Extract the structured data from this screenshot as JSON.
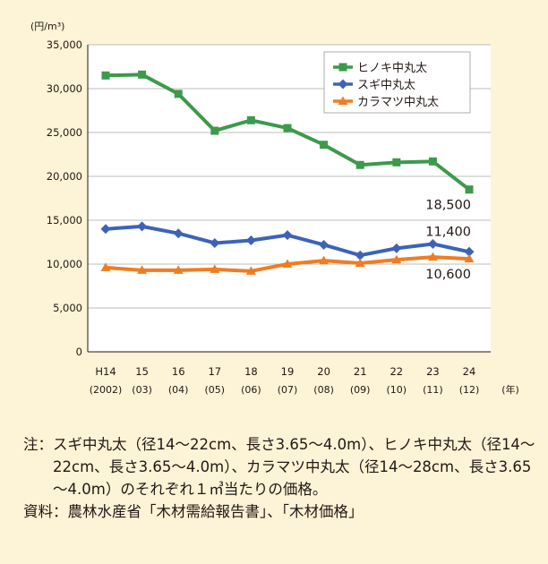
{
  "chart_data": {
    "type": "line",
    "y_unit": "(円/m³)",
    "x_unit": "(年)",
    "categories": [
      "H14",
      "15",
      "16",
      "17",
      "18",
      "19",
      "20",
      "21",
      "22",
      "23",
      "24"
    ],
    "subcategories": [
      "(2002)",
      "(03)",
      "(04)",
      "(05)",
      "(06)",
      "(07)",
      "(08)",
      "(09)",
      "(10)",
      "(11)",
      "(12)"
    ],
    "ylim": [
      0,
      35000
    ],
    "yticks": [
      0,
      5000,
      10000,
      15000,
      20000,
      25000,
      30000,
      35000
    ],
    "ytick_labels": [
      "0",
      "5,000",
      "10,000",
      "15,000",
      "20,000",
      "25,000",
      "30,000",
      "35,000"
    ],
    "grid": true,
    "legend_position": "top-right",
    "series": [
      {
        "name": "ヒノキ中丸太",
        "color": "#3c9a4a",
        "marker": "square",
        "values": [
          31500,
          31600,
          29400,
          25200,
          26400,
          25500,
          23600,
          21300,
          21600,
          21700,
          18500
        ],
        "end_label": "18,500"
      },
      {
        "name": "スギ中丸太",
        "color": "#3d63b8",
        "marker": "diamond",
        "values": [
          14000,
          14300,
          13500,
          12400,
          12700,
          13300,
          12200,
          11000,
          11800,
          12300,
          11400
        ],
        "end_label": "11,400"
      },
      {
        "name": "カラマツ中丸太",
        "color": "#ee7d22",
        "marker": "triangle",
        "values": [
          9600,
          9300,
          9300,
          9400,
          9200,
          10000,
          10400,
          10100,
          10500,
          10800,
          10600
        ],
        "end_label": "10,600"
      }
    ]
  },
  "notes": {
    "note_label": "注：",
    "note_text": "スギ中丸太（径14～22cm、長さ3.65～4.0m）、ヒノキ中丸太（径14～22cm、長さ3.65～4.0m）、カラマツ中丸太（径14～28cm、長さ3.65～4.0m）のそれぞれ１㎥当たりの価格。",
    "source_label": "資料：",
    "source_text": "農林水産省「木材需給報告書」、「木材価格」"
  }
}
